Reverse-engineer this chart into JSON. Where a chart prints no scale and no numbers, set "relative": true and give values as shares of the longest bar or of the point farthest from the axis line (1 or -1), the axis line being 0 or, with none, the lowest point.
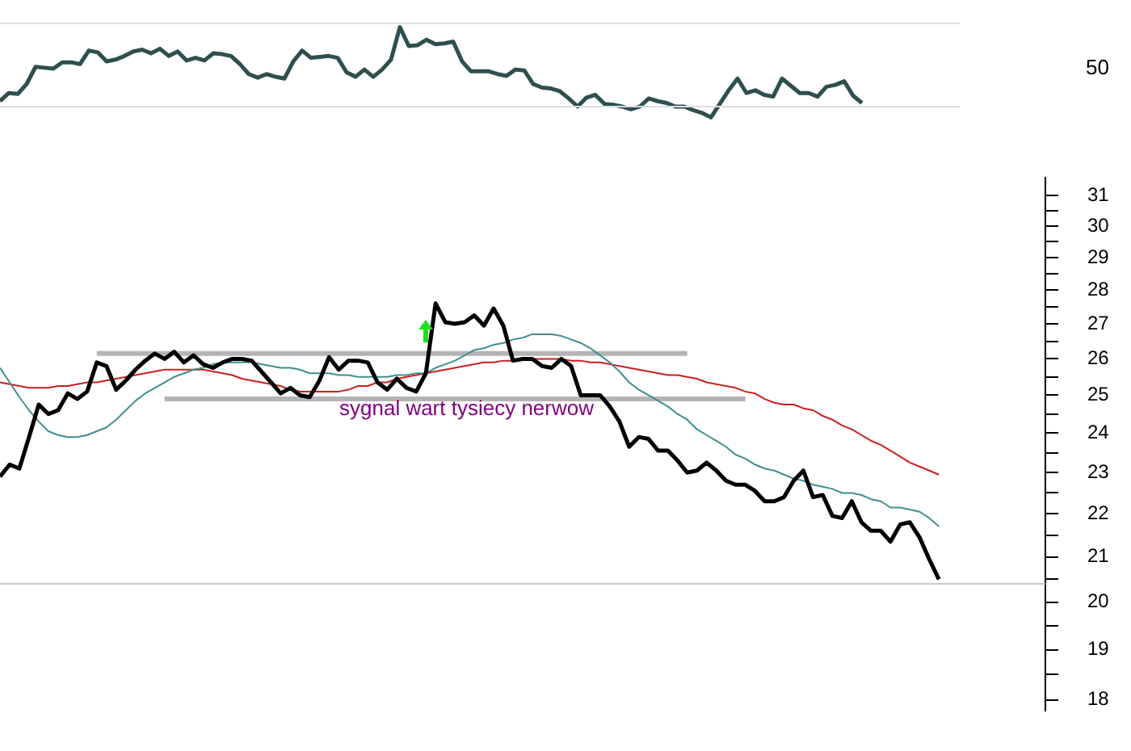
{
  "chart_data": [
    {
      "type": "line",
      "relative": true,
      "categories": [
        null,
        null,
        null,
        null,
        null,
        null,
        null,
        null,
        null,
        null,
        null,
        null,
        null,
        null,
        null,
        null,
        null,
        null,
        null,
        null,
        null,
        null,
        null,
        null,
        null,
        null,
        null,
        null,
        null,
        null,
        null,
        null,
        null,
        null,
        null,
        null,
        null,
        null,
        null,
        null,
        null,
        null,
        null,
        null,
        null,
        null,
        null,
        null,
        null,
        null,
        null,
        null,
        null,
        null,
        null,
        null,
        null,
        null,
        null,
        null,
        null,
        null,
        null,
        null,
        null,
        null,
        null,
        null,
        null,
        null,
        null,
        null,
        null,
        null,
        null,
        null,
        null,
        null,
        null,
        null,
        null,
        null,
        null,
        null,
        null,
        null,
        null,
        null,
        null,
        null,
        null,
        null,
        null,
        null,
        null,
        null,
        null,
        null,
        null,
        null,
        null,
        null,
        null,
        null,
        null,
        null,
        null,
        null,
        null
      ],
      "series": [
        {
          "color": "#2f4f4f",
          "values": [
            0.18,
            0.27,
            0.26,
            0.37,
            0.56,
            0.55,
            0.54,
            0.61,
            0.61,
            0.59,
            0.74,
            0.72,
            0.62,
            0.64,
            0.68,
            0.73,
            0.75,
            0.71,
            0.76,
            0.68,
            0.73,
            0.63,
            0.66,
            0.63,
            0.71,
            0.7,
            0.68,
            0.59,
            0.48,
            0.44,
            0.48,
            0.45,
            0.43,
            0.62,
            0.74,
            0.66,
            0.67,
            0.68,
            0.66,
            0.5,
            0.45,
            0.53,
            0.45,
            0.53,
            0.64,
            1.0,
            0.79,
            0.8,
            0.86,
            0.81,
            0.82,
            0.84,
            0.62,
            0.51,
            0.51,
            0.51,
            0.48,
            0.46,
            0.53,
            0.52,
            0.37,
            0.33,
            0.32,
            0.29,
            0.21,
            0.12,
            0.22,
            0.25,
            0.15,
            0.14,
            0.12,
            0.09,
            0.12,
            0.21,
            0.18,
            0.16,
            0.12,
            0.12,
            0.08,
            0.05,
            0.0,
            0.15,
            0.3,
            0.43,
            0.27,
            0.3,
            0.25,
            0.23,
            0.43,
            0.35,
            0.27,
            0.27,
            0.23,
            0.34,
            0.36,
            0.4,
            0.24,
            0.16,
            null,
            null,
            null,
            null,
            null,
            null,
            null,
            null,
            null,
            null,
            null
          ]
        }
      ],
      "ref_lines": [
        {
          "axis": "y",
          "value": 1.04,
          "color": "#dcdce6"
        },
        {
          "axis": "y",
          "value": 0.12,
          "color": "#dcdce6"
        }
      ],
      "annotations": [
        "50"
      ],
      "grid": false,
      "legend": false,
      "tick_labels": false,
      "marker": "none",
      "line_style": "solid"
    },
    {
      "type": "line",
      "log": true,
      "ylim": [
        17.8,
        31.6
      ],
      "yticks": [
        18,
        {
          "value": 18.5,
          "label": null
        },
        19,
        {
          "value": 19.5,
          "label": null
        },
        20,
        {
          "value": 20.5,
          "label": null
        },
        21,
        {
          "value": 21.5,
          "label": null
        },
        22,
        {
          "value": 22.5,
          "label": null
        },
        23,
        {
          "value": 23.5,
          "label": null
        },
        24,
        {
          "value": 24.5,
          "label": null
        },
        25,
        {
          "value": 25.5,
          "label": null
        },
        26,
        {
          "value": 26.5,
          "label": null
        },
        27,
        {
          "value": 27.5,
          "label": null
        },
        28,
        {
          "value": 28.5,
          "label": null
        },
        29,
        {
          "value": 29.5,
          "label": null
        },
        30,
        {
          "value": 30.5,
          "label": null
        },
        31
      ],
      "categories": [
        null,
        null,
        null,
        null,
        null,
        null,
        null,
        null,
        null,
        null,
        null,
        null,
        null,
        null,
        null,
        null,
        null,
        null,
        null,
        null,
        null,
        null,
        null,
        null,
        null,
        null,
        null,
        null,
        null,
        null,
        null,
        null,
        null,
        null,
        null,
        null,
        null,
        null,
        null,
        null,
        null,
        null,
        null,
        null,
        null,
        null,
        null,
        null,
        null,
        null,
        null,
        null,
        null,
        null,
        null,
        null,
        null,
        null,
        null,
        null,
        null,
        null,
        null,
        null,
        null,
        null,
        null,
        null,
        null,
        null,
        null,
        null,
        null,
        null,
        null,
        null,
        null,
        null,
        null,
        null,
        null,
        null,
        null,
        null,
        null,
        null,
        null,
        null,
        null,
        null,
        null,
        null,
        null,
        null,
        null,
        null,
        null,
        null,
        null,
        null,
        null,
        null,
        null,
        null,
        null,
        null,
        null,
        null,
        null
      ],
      "series": [
        {
          "color": "#000000",
          "values": [
            22.9,
            23.2,
            23.1,
            23.9,
            24.75,
            24.5,
            24.6,
            25.05,
            24.9,
            25.1,
            25.9,
            25.8,
            25.15,
            25.4,
            25.7,
            25.95,
            26.15,
            26.0,
            26.2,
            25.9,
            26.1,
            25.85,
            25.75,
            25.9,
            26.0,
            26.0,
            25.95,
            25.65,
            25.35,
            25.05,
            25.2,
            25.0,
            24.95,
            25.4,
            26.05,
            25.7,
            25.95,
            25.95,
            25.9,
            25.35,
            25.15,
            25.45,
            25.2,
            25.1,
            25.6,
            27.6,
            27.05,
            27.0,
            27.05,
            27.25,
            26.95,
            27.45,
            26.95,
            25.95,
            26.0,
            26.0,
            25.8,
            25.75,
            26.0,
            25.8,
            25.0,
            25.0,
            25.0,
            24.7,
            24.3,
            23.65,
            23.9,
            23.85,
            23.55,
            23.55,
            23.3,
            23.0,
            23.05,
            23.25,
            23.05,
            22.8,
            22.7,
            22.7,
            22.55,
            22.3,
            22.3,
            22.4,
            22.8,
            23.05,
            22.4,
            22.45,
            21.95,
            21.9,
            22.3,
            21.8,
            21.6,
            21.6,
            21.35,
            21.75,
            21.8,
            21.45,
            20.95,
            20.5,
            null,
            null,
            null,
            null,
            null,
            null,
            null,
            null,
            null,
            null,
            null
          ]
        },
        {
          "color": "#3f8f8f",
          "values": [
            25.75,
            25.35,
            24.95,
            24.6,
            24.3,
            24.05,
            23.95,
            23.9,
            23.9,
            23.95,
            24.05,
            24.15,
            24.35,
            24.6,
            24.85,
            25.05,
            25.2,
            25.35,
            25.5,
            25.6,
            25.7,
            25.75,
            25.85,
            25.9,
            25.9,
            25.9,
            25.9,
            25.85,
            25.8,
            25.75,
            25.75,
            25.7,
            25.6,
            25.6,
            25.6,
            25.55,
            25.55,
            25.5,
            25.5,
            25.5,
            25.5,
            25.55,
            25.55,
            25.6,
            25.6,
            25.75,
            25.85,
            25.95,
            26.1,
            26.25,
            26.3,
            26.4,
            26.45,
            26.55,
            26.6,
            26.7,
            26.7,
            26.7,
            26.65,
            26.55,
            26.45,
            26.3,
            26.1,
            25.9,
            25.65,
            25.35,
            25.15,
            25.0,
            24.85,
            24.7,
            24.5,
            24.35,
            24.1,
            23.95,
            23.8,
            23.65,
            23.45,
            23.35,
            23.2,
            23.1,
            23.05,
            22.95,
            22.85,
            22.8,
            22.7,
            22.65,
            22.6,
            22.5,
            22.5,
            22.45,
            22.35,
            22.3,
            22.15,
            22.15,
            22.1,
            22.05,
            21.9,
            21.7,
            null,
            null,
            null,
            null,
            null,
            null,
            null,
            null,
            null,
            null,
            null
          ]
        },
        {
          "color": "#cc1f1f",
          "values": [
            25.35,
            25.3,
            25.25,
            25.2,
            25.2,
            25.2,
            25.25,
            25.25,
            25.3,
            25.35,
            25.35,
            25.4,
            25.45,
            25.5,
            25.55,
            25.6,
            25.65,
            25.7,
            25.7,
            25.7,
            25.7,
            25.7,
            25.65,
            25.6,
            25.55,
            25.45,
            25.4,
            25.35,
            25.3,
            25.25,
            25.15,
            25.1,
            25.1,
            25.1,
            25.1,
            25.1,
            25.15,
            25.25,
            25.25,
            25.35,
            25.35,
            25.45,
            25.5,
            25.55,
            25.6,
            25.65,
            25.7,
            25.75,
            25.8,
            25.85,
            25.9,
            25.9,
            25.95,
            25.95,
            26.0,
            26.0,
            26.0,
            26.0,
            26.0,
            25.95,
            25.95,
            25.9,
            25.9,
            25.85,
            25.8,
            25.75,
            25.7,
            25.65,
            25.6,
            25.55,
            25.55,
            25.5,
            25.45,
            25.35,
            25.3,
            25.25,
            25.2,
            25.1,
            25.05,
            24.9,
            24.8,
            24.75,
            24.75,
            24.65,
            24.6,
            24.45,
            24.35,
            24.2,
            24.1,
            23.95,
            23.8,
            23.7,
            23.55,
            23.4,
            23.25,
            23.15,
            23.05,
            22.95,
            null,
            null,
            null,
            null,
            null,
            null,
            null,
            null,
            null,
            null,
            null
          ]
        },
        {
          "color": "#b4b4b4",
          "values": [
            null,
            null,
            null,
            null,
            null,
            null,
            null,
            null,
            null,
            null,
            26.15,
            26.15,
            26.15,
            26.15,
            26.15,
            26.15,
            26.15,
            26.15,
            26.15,
            26.15,
            26.15,
            26.15,
            26.15,
            26.15,
            26.15,
            26.15,
            26.15,
            26.15,
            26.15,
            26.15,
            26.15,
            26.15,
            26.15,
            26.15,
            26.15,
            26.15,
            26.15,
            26.15,
            26.15,
            26.15,
            26.15,
            26.15,
            26.15,
            26.15,
            26.15,
            26.15,
            26.15,
            26.15,
            26.15,
            26.15,
            26.15,
            26.15,
            26.15,
            26.15,
            26.15,
            26.15,
            26.15,
            26.15,
            26.15,
            26.15,
            26.15,
            26.15,
            26.15,
            26.15,
            26.15,
            26.15,
            26.15,
            26.15,
            26.15,
            26.15,
            26.15,
            26.15,
            null,
            null,
            null,
            null,
            null,
            null,
            null,
            null,
            null,
            null,
            null,
            null,
            null,
            null,
            null,
            null,
            null,
            null,
            null,
            null,
            null,
            null,
            null,
            null,
            null,
            null,
            null,
            null,
            null,
            null,
            null,
            null,
            null,
            null,
            null,
            null,
            null
          ]
        },
        {
          "color": "#b4b4b4",
          "values": [
            null,
            null,
            null,
            null,
            null,
            null,
            null,
            null,
            null,
            null,
            null,
            null,
            null,
            null,
            null,
            null,
            null,
            24.9,
            24.9,
            24.9,
            24.9,
            24.9,
            24.9,
            24.9,
            24.9,
            24.9,
            24.9,
            24.9,
            24.9,
            24.9,
            24.9,
            24.9,
            24.9,
            24.9,
            24.9,
            24.9,
            24.9,
            24.9,
            24.9,
            24.9,
            24.9,
            24.9,
            24.9,
            24.9,
            24.9,
            24.9,
            24.9,
            24.9,
            24.9,
            24.9,
            24.9,
            24.9,
            24.9,
            24.9,
            24.9,
            24.9,
            24.9,
            24.9,
            24.9,
            24.9,
            24.9,
            24.9,
            24.9,
            24.9,
            24.9,
            24.9,
            24.9,
            24.9,
            24.9,
            24.9,
            24.9,
            24.9,
            24.9,
            24.9,
            24.9,
            24.9,
            24.9,
            24.9,
            null,
            null,
            null,
            null,
            null,
            null,
            null,
            null,
            null,
            null,
            null,
            null,
            null,
            null,
            null,
            null,
            null,
            null,
            null,
            null,
            null,
            null,
            null,
            null,
            null,
            null,
            null,
            null,
            null,
            null,
            null
          ]
        }
      ],
      "ref_lines": [
        {
          "axis": "y",
          "value": 20.4,
          "color": "#c8c8c8"
        }
      ],
      "annotations": [
        "sygnal wart tysiecy nerwow"
      ],
      "grid": false,
      "legend": false,
      "tick_labels": "y",
      "marker": "none",
      "line_style": "solid"
    }
  ]
}
